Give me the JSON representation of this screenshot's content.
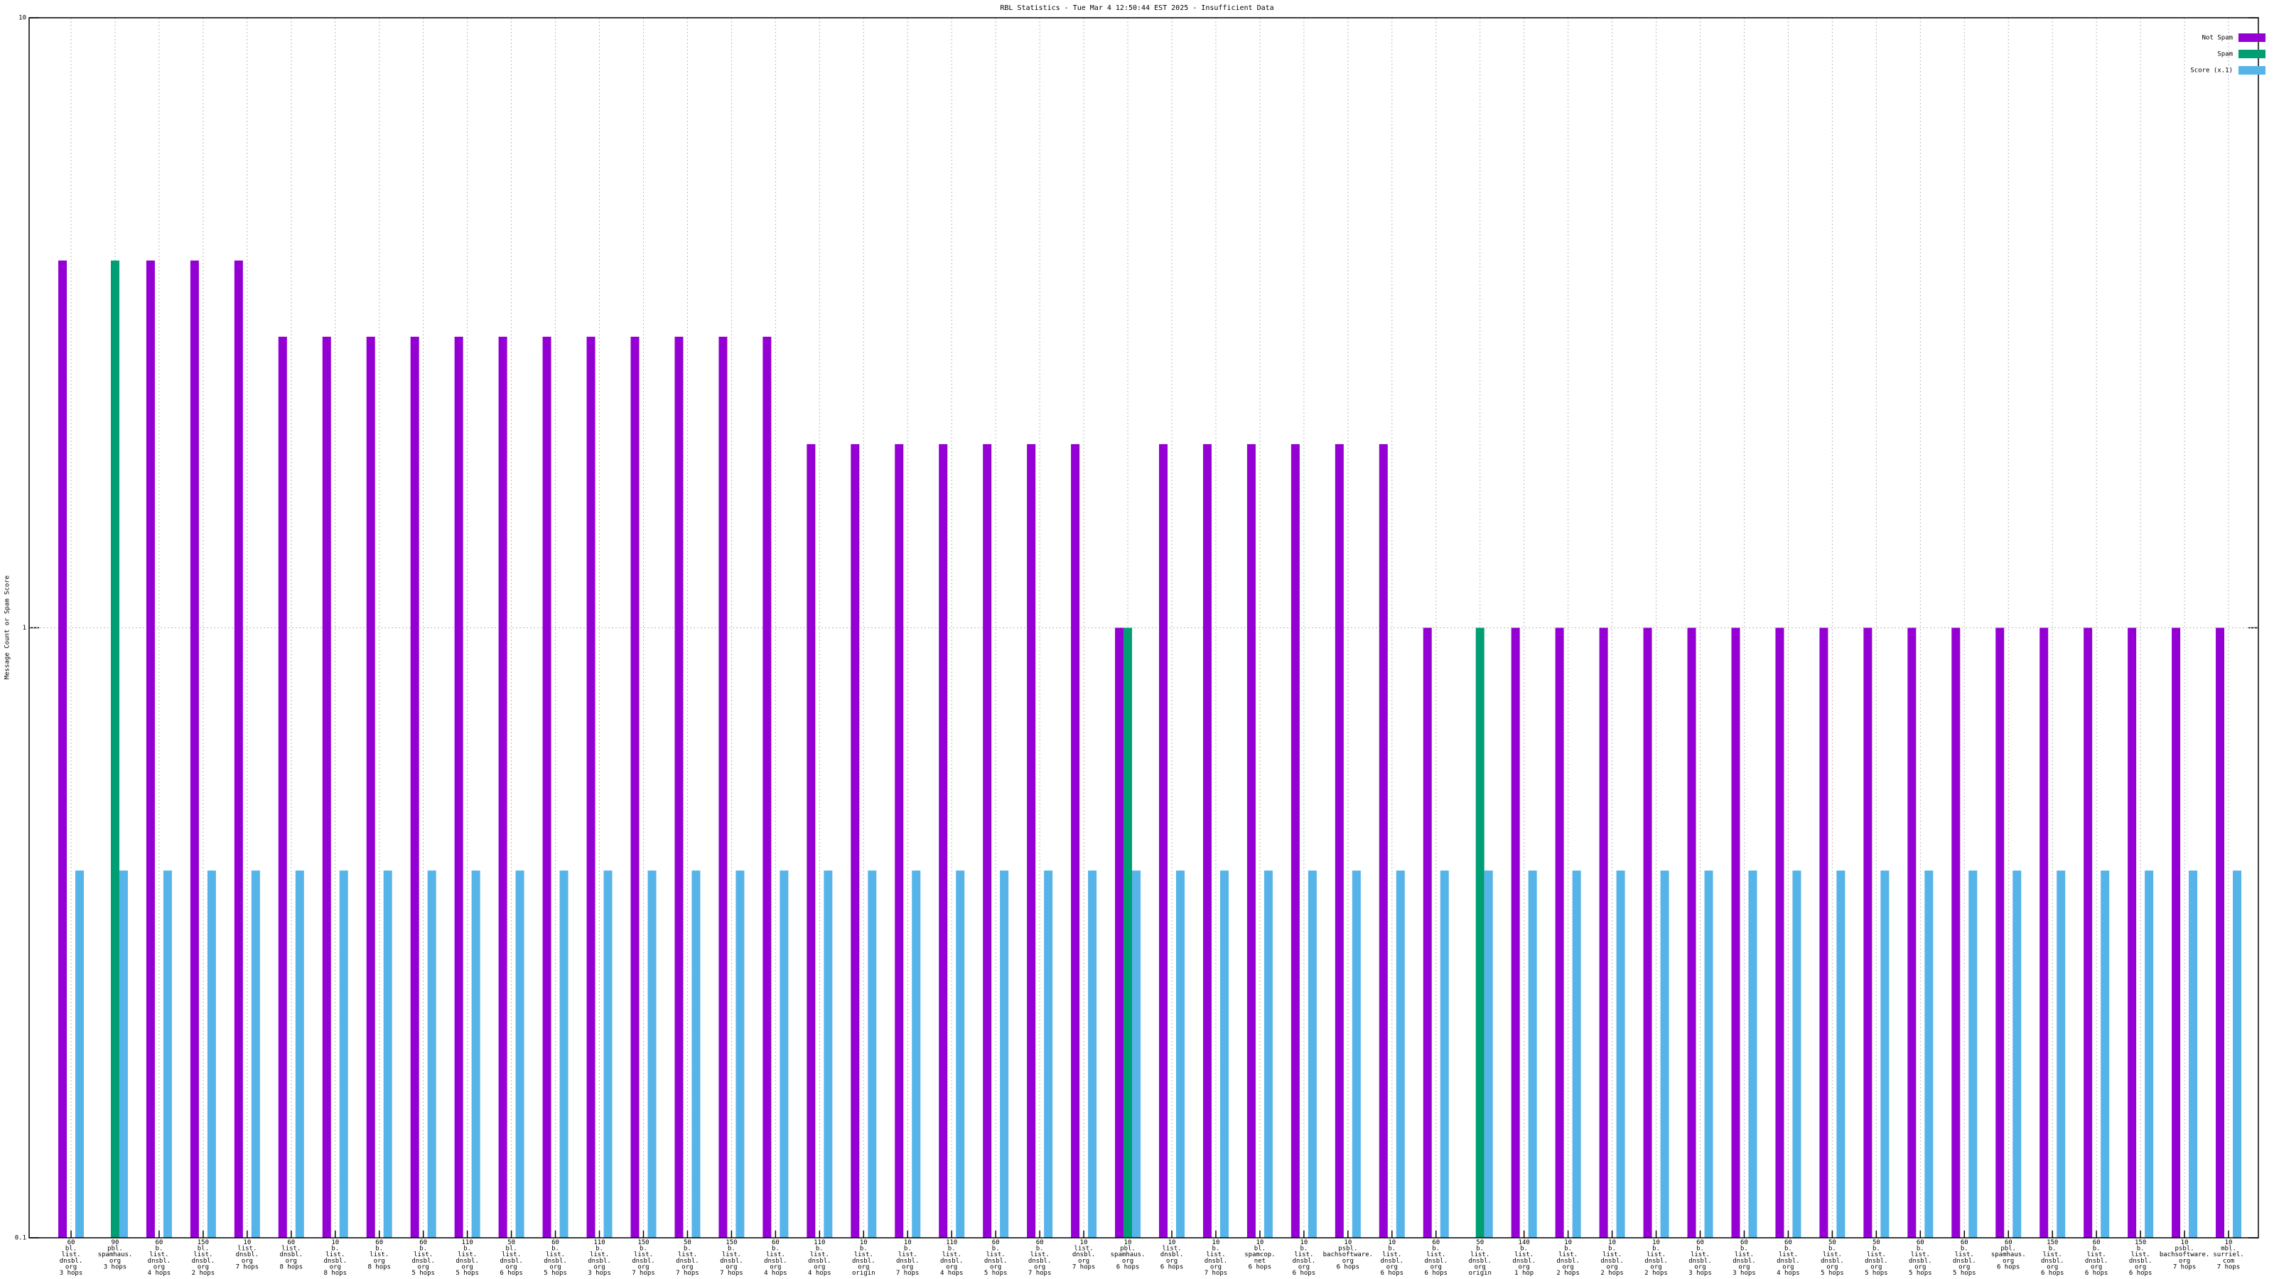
{
  "chart_data": {
    "type": "bar",
    "title": "RBL Statistics - Tue Mar  4 12:50:44 EST 2025 - Insufficient Data",
    "y_label": "Message Count or Spam Score",
    "ylog": true,
    "ylim": [
      0.1,
      10
    ],
    "yticks": [
      0.1,
      1,
      10
    ],
    "grid": true,
    "legend": "top-right",
    "categories": [
      "60\nbl.\nlist.\ndnsbl.\norg\n3 hops",
      "90\npbl.\nspamhaus.\norg\n3 hops",
      "60\nb.\nlist.\ndnsbl.\norg\n4 hops",
      "150\nbl.\nlist.\ndnsbl.\norg\n2 hops",
      "10\nlist.\ndnsbl.\norg\n7 hops",
      "60\nlist.\ndnsbl.\norg\n8 hops",
      "10\nb.\nlist.\ndnsbl.\norg\n8 hops",
      "60\nb.\nlist.\norg\n8 hops",
      "60\nb.\nlist.\ndnsbl.\norg\n5 hops",
      "110\nb.\nlist.\ndnsbl.\norg\n5 hops",
      "50\nbl.\nlist.\ndnsbl.\norg\n6 hops",
      "60\nb.\nlist.\ndnsbl.\norg\n5 hops",
      "110\nb.\nlist.\ndnsbl.\norg\n3 hops",
      "150\nb.\nlist.\ndnsbl.\norg\n7 hops",
      "50\nb.\nlist.\ndnsbl.\norg\n7 hops",
      "150\nb.\nlist.\ndnsbl.\norg\n7 hops",
      "60\nb.\nlist.\ndnsbl.\norg\n4 hops",
      "110\nb.\nlist.\ndnsbl.\norg\n4 hops",
      "10\nb.\nlist.\ndnsbl.\norg\norigin",
      "10\nb.\nlist.\ndnsbl.\norg\n7 hops",
      "110\nb.\nlist.\ndnsbl.\norg\n4 hops",
      "60\nb.\nlist.\ndnsbl.\norg\n5 hops",
      "60\nb.\nlist.\ndnsbl.\norg\n7 hops",
      "10\nlist.\ndnsbl.\norg\n7 hops",
      "10\npbl.\nspamhaus.\norg\n6 hops",
      "10\nlist.\ndnsbl.\norg\n6 hops",
      "10\nb.\nlist.\ndnsbl.\norg\n7 hops",
      "10\nbl.\nspamcop.\nnet\n6 hops",
      "10\nb.\nlist.\ndnsbl.\norg\n6 hops",
      "10\npsbl.\nbachsoftware.\norg\n6 hops",
      "10\nb.\nlist.\ndnsbl.\norg\n6 hops",
      "60\nb.\nlist.\ndnsbl.\norg\n6 hops",
      "50\nb.\nlist.\ndnsbl.\norg\norigin",
      "140\nb.\nlist.\ndnsbl.\norg\n1 hop",
      "10\nb.\nlist.\ndnsbl.\norg\n2 hops",
      "10\nb.\nlist.\ndnsbl.\norg\n2 hops",
      "10\nb.\nlist.\ndnsbl.\norg\n2 hops",
      "60\nb.\nlist.\ndnsbl.\norg\n3 hops",
      "60\nb.\nlist.\ndnsbl.\norg\n3 hops",
      "60\nb.\nlist.\ndnsbl.\norg\n4 hops",
      "50\nb.\nlist.\ndnsbl.\norg\n5 hops",
      "50\nb.\nlist.\ndnsbl.\norg\n5 hops",
      "60\nb.\nlist.\ndnsbl.\norg\n5 hops",
      "60\nb.\nlist.\ndnsbl.\norg\n5 hops",
      "60\npbl.\nspamhaus.\norg\n6 hops",
      "150\nb.\nlist.\ndnsbl.\norg\n6 hops",
      "60\nb.\nlist.\ndnsbl.\norg\n6 hops",
      "150\nb.\nlist.\ndnsbl.\norg\n6 hops",
      "10\npsbl.\nbachsoftware.\norg\n7 hops",
      "10\nmbl.\nsurriel.\ncom\n7 hops"
    ],
    "series": [
      {
        "name": "Not Spam",
        "color": "#9400d3",
        "values": [
          4,
          null,
          4,
          4,
          4,
          3,
          3,
          3,
          3,
          3,
          3,
          3,
          3,
          3,
          3,
          3,
          3,
          2,
          2,
          2,
          2,
          2,
          2,
          2,
          1,
          2,
          2,
          2,
          2,
          2,
          2,
          1,
          null,
          1,
          1,
          1,
          1,
          1,
          1,
          1,
          1,
          1,
          1,
          1,
          1,
          1,
          1,
          1,
          1,
          1
        ]
      },
      {
        "name": "Spam",
        "color": "#009e73",
        "values": [
          null,
          4,
          null,
          null,
          null,
          null,
          null,
          null,
          null,
          null,
          null,
          null,
          null,
          null,
          null,
          null,
          null,
          null,
          null,
          null,
          null,
          null,
          null,
          null,
          1,
          null,
          null,
          null,
          null,
          null,
          null,
          null,
          1,
          null,
          null,
          null,
          null,
          null,
          null,
          null,
          null,
          null,
          null,
          null,
          null,
          null,
          null,
          null,
          null,
          null
        ]
      },
      {
        "name": "Score (x.1)",
        "color": "#56b4e9",
        "values": [
          0.4,
          0.4,
          0.4,
          0.4,
          0.4,
          0.4,
          0.4,
          0.4,
          0.4,
          0.4,
          0.4,
          0.4,
          0.4,
          0.4,
          0.4,
          0.4,
          0.4,
          0.4,
          0.4,
          0.4,
          0.4,
          0.4,
          0.4,
          0.4,
          0.4,
          0.4,
          0.4,
          0.4,
          0.4,
          0.4,
          0.4,
          0.4,
          0.4,
          0.4,
          0.4,
          0.4,
          0.4,
          0.4,
          0.4,
          0.4,
          0.4,
          0.4,
          0.4,
          0.4,
          0.4,
          0.4,
          0.4,
          0.4,
          0.4,
          0.4
        ]
      }
    ]
  }
}
